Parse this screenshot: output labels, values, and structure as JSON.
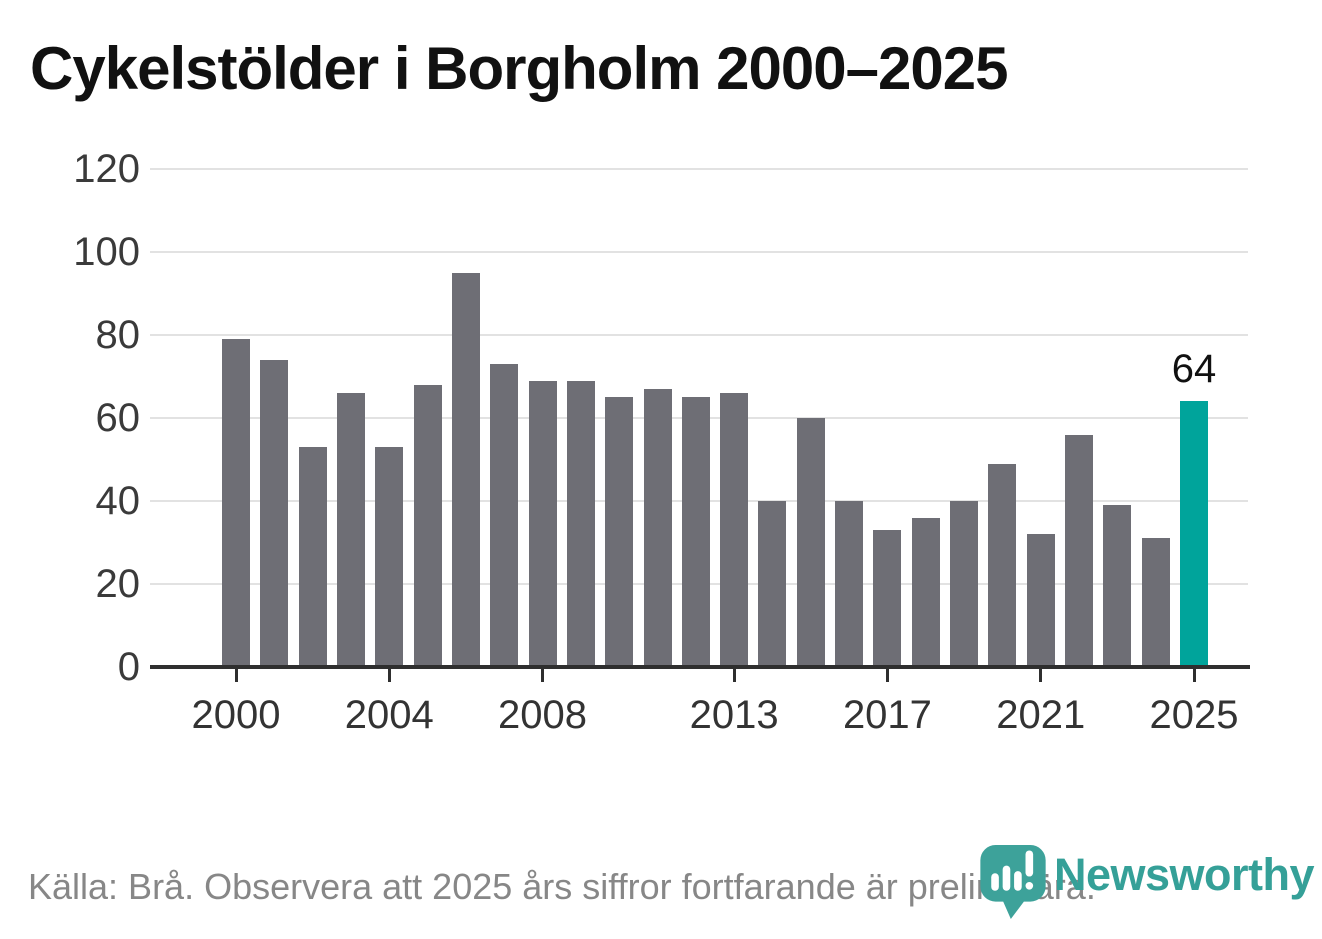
{
  "title": "Cykelstölder i Borgholm 2000–2025",
  "footer": {
    "source_note": "Källa: Brå. Observera att 2025 års siffror fortfarande är preliminära."
  },
  "branding": {
    "logo_text": "Newsworthy",
    "logo_color": "#35a098"
  },
  "colors": {
    "bar": "#6e6e75",
    "highlight_bar": "#00a49b",
    "gridline": "#e2e2e2",
    "axis": "#2f2f2f",
    "tick_label": "#3a3a3a",
    "title_text": "#111111",
    "footer_text": "#878787"
  },
  "chart_data": {
    "type": "bar",
    "title": "Cykelstölder i Borgholm 2000–2025",
    "xlabel": "",
    "ylabel": "",
    "categories": [
      2000,
      2001,
      2002,
      2003,
      2004,
      2005,
      2006,
      2007,
      2008,
      2009,
      2010,
      2011,
      2012,
      2013,
      2014,
      2015,
      2016,
      2017,
      2018,
      2019,
      2020,
      2021,
      2022,
      2023,
      2024,
      2025
    ],
    "values": [
      79,
      74,
      53,
      66,
      53,
      68,
      95,
      73,
      69,
      69,
      65,
      67,
      65,
      66,
      40,
      60,
      40,
      33,
      36,
      40,
      49,
      32,
      56,
      39,
      31,
      64
    ],
    "highlight_index": 25,
    "highlight_value_label": "64",
    "ylim": [
      0,
      120
    ],
    "yticks": [
      0,
      20,
      40,
      60,
      80,
      100,
      120
    ],
    "xticks": [
      2000,
      2004,
      2008,
      2013,
      2017,
      2021,
      2025
    ],
    "grid": "horizontal",
    "legend": "none"
  }
}
